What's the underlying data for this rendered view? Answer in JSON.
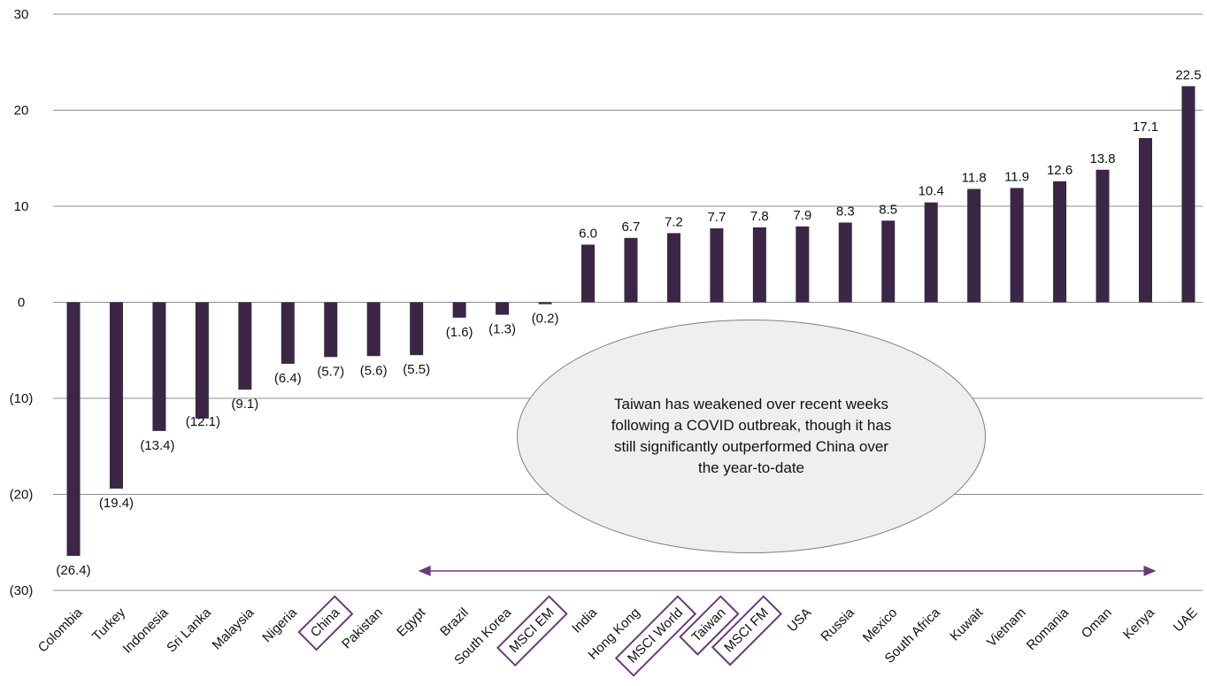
{
  "chart_data": {
    "type": "bar",
    "categories": [
      "Colombia",
      "Turkey",
      "Indonesia",
      "Sri Lanka",
      "Malaysia",
      "Nigeria",
      "China",
      "Pakistan",
      "Egypt",
      "Brazil",
      "South Korea",
      "MSCI EM",
      "India",
      "Hong Kong",
      "MSCI World",
      "Taiwan",
      "MSCI FM",
      "USA",
      "Russia",
      "Mexico",
      "South Africa",
      "Kuwait",
      "Vietnam",
      "Romania",
      "Oman",
      "Kenya",
      "UAE"
    ],
    "values": [
      -26.4,
      -19.4,
      -13.4,
      -12.1,
      -9.1,
      -6.4,
      -5.7,
      -5.6,
      -5.5,
      -1.6,
      -1.3,
      -0.2,
      6.0,
      6.7,
      7.2,
      7.7,
      7.8,
      7.9,
      8.3,
      8.5,
      10.4,
      11.8,
      11.9,
      12.6,
      13.8,
      17.1,
      22.5
    ],
    "data_labels": [
      "(26.4)",
      "(19.4)",
      "(13.4)",
      "(12.1)",
      "(9.1)",
      "(6.4)",
      "(5.7)",
      "(5.6)",
      "(5.5)",
      "(1.6)",
      "(1.3)",
      "(0.2)",
      "6.0",
      "6.7",
      "7.2",
      "7.7",
      "7.8",
      "7.9",
      "8.3",
      "8.5",
      "10.4",
      "11.8",
      "11.9",
      "12.6",
      "13.8",
      "17.1",
      "22.5"
    ],
    "boxed_categories": [
      "China",
      "MSCI EM",
      "MSCI World",
      "Taiwan",
      "MSCI FM"
    ],
    "y_ticks": [
      30,
      20,
      10,
      0,
      -10,
      -20,
      -30
    ],
    "y_tick_labels": [
      "30",
      "20",
      "10",
      "0",
      "(10)",
      "(20)",
      "(30)"
    ],
    "ylim": [
      -30,
      30
    ],
    "grid": true,
    "bar_color": "#3b2645",
    "accent_color": "#6b3a78",
    "title": "",
    "xlabel": "",
    "ylabel": ""
  },
  "annotation": {
    "text": "Taiwan has weakened over recent weeks following a COVID outbreak, though it has still significantly outperformed China over the year-to-date"
  },
  "arrow": {
    "from_category": "Egypt",
    "to_category": "Kenya"
  }
}
